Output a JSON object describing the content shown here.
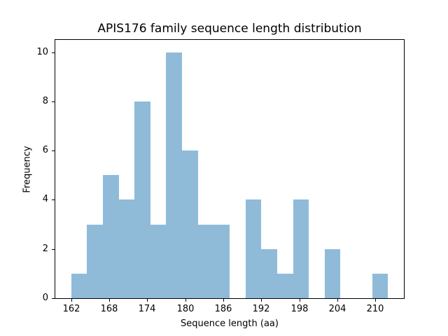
{
  "figure": {
    "background_color": "#ffffff",
    "spine_color": "#000000",
    "text_color": "#000000"
  },
  "chart_data": {
    "type": "bar",
    "subtype": "histogram",
    "title": "APIS176 family sequence length distribution",
    "xlabel": "Sequence length (aa)",
    "ylabel": "Frequency",
    "bin_edges": [
      162.0,
      164.5,
      167.0,
      169.5,
      172.0,
      174.5,
      177.0,
      179.5,
      182.0,
      184.5,
      187.0,
      189.5,
      192.0,
      194.5,
      197.0,
      199.5,
      202.0,
      204.5,
      207.0,
      209.5,
      212.0
    ],
    "counts": [
      1,
      3,
      5,
      4,
      8,
      3,
      10,
      6,
      3,
      3,
      0,
      4,
      2,
      1,
      4,
      0,
      2,
      0,
      0,
      1
    ],
    "xticks": [
      162,
      168,
      174,
      180,
      186,
      192,
      198,
      204,
      210
    ],
    "yticks": [
      0,
      2,
      4,
      6,
      8,
      10
    ],
    "xlim": [
      159.5,
      214.5
    ],
    "ylim": [
      0,
      10.5
    ],
    "bar_color": "#8fbbd9",
    "grid": false,
    "legend": null
  }
}
